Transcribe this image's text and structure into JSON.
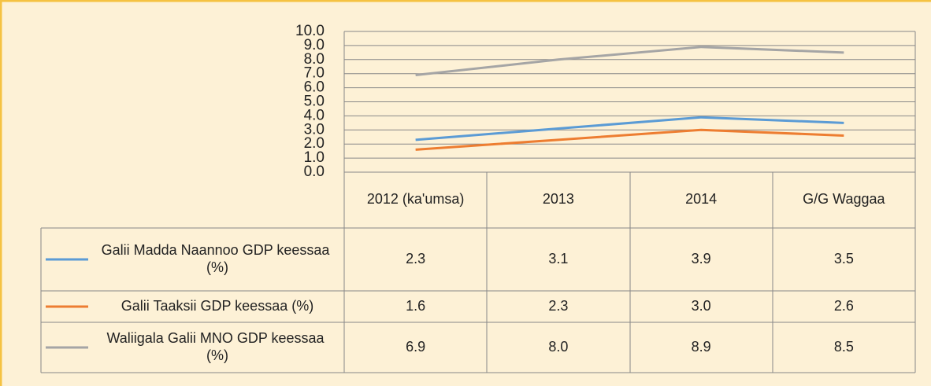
{
  "chart_data": {
    "type": "line",
    "categories": [
      "2012 (ka'umsa)",
      "2013",
      "2014",
      "G/G Waggaa"
    ],
    "series": [
      {
        "name": "Galii Madda Naannoo GDP keessaa (%)",
        "color": "#5b9bd5",
        "values": [
          2.3,
          3.1,
          3.9,
          3.5
        ],
        "value_labels": [
          "2.3",
          "3.1",
          "3.9",
          "3.5"
        ]
      },
      {
        "name": "Galii Taaksii GDP keessaa (%)",
        "color": "#ed7d31",
        "values": [
          1.6,
          2.3,
          3.0,
          2.6
        ],
        "value_labels": [
          "1.6",
          "2.3",
          "3.0",
          "2.6"
        ]
      },
      {
        "name": "Waliigala Galii MNO GDP keessaa (%)",
        "color": "#a5a5a5",
        "values": [
          6.9,
          8.0,
          8.9,
          8.5
        ],
        "value_labels": [
          "6.9",
          "8.0",
          "8.9",
          "8.5"
        ]
      }
    ],
    "ylim": [
      0,
      10
    ],
    "yticks": [
      {
        "value": 0,
        "label": "0.0"
      },
      {
        "value": 1,
        "label": "1.0"
      },
      {
        "value": 2,
        "label": "2.0"
      },
      {
        "value": 3,
        "label": "3.0"
      },
      {
        "value": 4,
        "label": "4.0"
      },
      {
        "value": 5,
        "label": "5.0"
      },
      {
        "value": 6,
        "label": "6.0"
      },
      {
        "value": 7,
        "label": "7.0"
      },
      {
        "value": 8,
        "label": "8.0"
      },
      {
        "value": 9,
        "label": "9.0"
      },
      {
        "value": 10,
        "label": "10.0"
      }
    ],
    "grid": true,
    "legend": "table"
  }
}
